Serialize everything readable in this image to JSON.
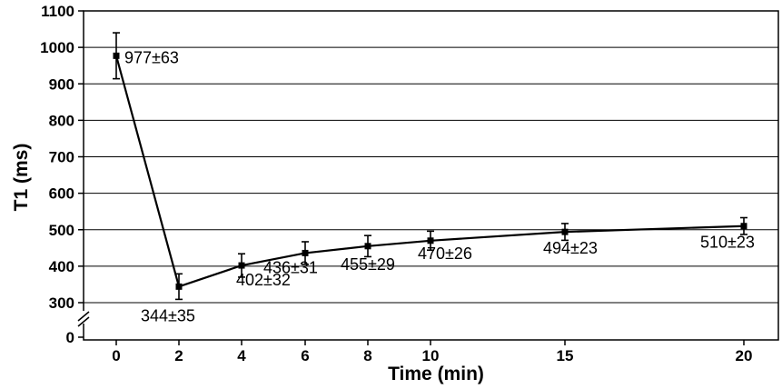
{
  "chart_data": {
    "type": "line",
    "title": "",
    "xlabel": "Time (min)",
    "ylabel": "T1 (ms)",
    "x": [
      0,
      2,
      4,
      6,
      8,
      10,
      15,
      20
    ],
    "x_ticks": [
      "0",
      "2",
      "4",
      "6",
      "8",
      "10",
      "15",
      "20"
    ],
    "series": [
      {
        "values": [
          977,
          344,
          402,
          436,
          455,
          470,
          494,
          510
        ],
        "errors": [
          63,
          35,
          32,
          31,
          29,
          26,
          23,
          23
        ],
        "labels": [
          "977±63",
          "344±35",
          "402±32",
          "436±31",
          "455±29",
          "470±26",
          "494±23",
          "510±23"
        ]
      }
    ],
    "y_ticks": [
      "0",
      "300",
      "400",
      "500",
      "600",
      "700",
      "800",
      "900",
      "1000",
      "1100"
    ],
    "ylim": [
      300,
      1100
    ],
    "y_axis_break": true,
    "grid": "horizontal",
    "line_color": "#000000",
    "marker": "square"
  }
}
